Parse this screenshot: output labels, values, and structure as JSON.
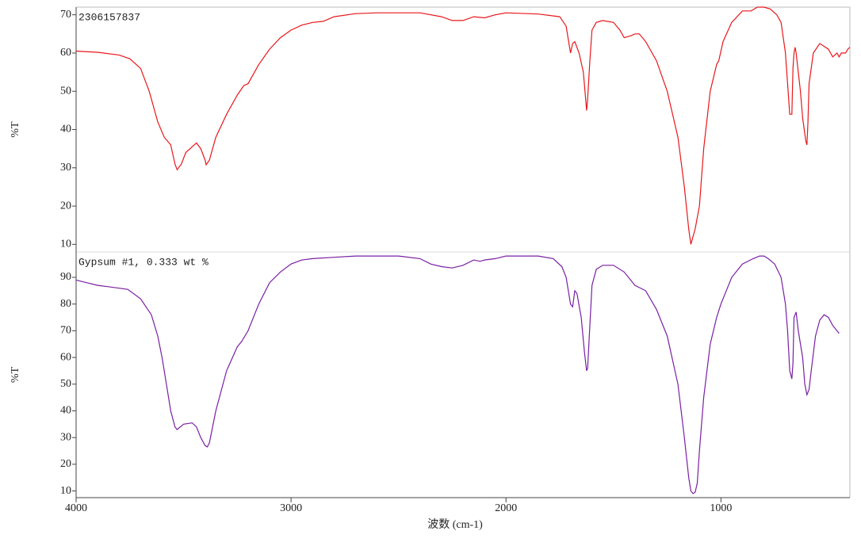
{
  "chart_data": [
    {
      "type": "line",
      "title": "2306157837",
      "ylabel": "%T",
      "color": "#e8171b",
      "xlim": [
        4000,
        400
      ],
      "ylim": [
        8,
        72
      ],
      "yticks": [
        10,
        20,
        30,
        40,
        50,
        60,
        70
      ],
      "x": [
        4000,
        3900,
        3800,
        3750,
        3700,
        3660,
        3620,
        3590,
        3560,
        3540,
        3530,
        3510,
        3490,
        3460,
        3440,
        3420,
        3400,
        3395,
        3380,
        3350,
        3300,
        3250,
        3220,
        3200,
        3150,
        3100,
        3050,
        3000,
        2950,
        2900,
        2850,
        2800,
        2700,
        2600,
        2400,
        2300,
        2250,
        2200,
        2150,
        2100,
        2050,
        2000,
        1850,
        1750,
        1720,
        1700,
        1690,
        1680,
        1660,
        1640,
        1625,
        1620,
        1610,
        1600,
        1580,
        1550,
        1500,
        1470,
        1450,
        1420,
        1400,
        1380,
        1350,
        1300,
        1250,
        1200,
        1170,
        1150,
        1140,
        1130,
        1120,
        1100,
        1080,
        1050,
        1020,
        1010,
        990,
        950,
        900,
        860,
        830,
        800,
        770,
        740,
        720,
        700,
        690,
        680,
        670,
        665,
        660,
        655,
        650,
        640,
        630,
        620,
        605,
        600,
        595,
        590,
        570,
        540,
        500,
        480,
        460,
        450,
        440,
        420,
        410,
        400
      ],
      "values": [
        60.5,
        60.2,
        59.5,
        58.5,
        56,
        50,
        42,
        38,
        36,
        31,
        29.5,
        31,
        34,
        35.5,
        36.5,
        35,
        32,
        30.8,
        32,
        38,
        44,
        49,
        51.5,
        52,
        57,
        61,
        64,
        66,
        67.3,
        68,
        68.3,
        69.5,
        70.3,
        70.5,
        70.5,
        69.5,
        68.5,
        68.5,
        69.5,
        69.2,
        70,
        70.5,
        70.2,
        69.5,
        67,
        60,
        62.5,
        63,
        60,
        55,
        45,
        48,
        58,
        66,
        68,
        68.5,
        68,
        66,
        64,
        64.5,
        65,
        65,
        63,
        58,
        50,
        38,
        25,
        14,
        10,
        12,
        14,
        20,
        35,
        50,
        57,
        58,
        63,
        68,
        71,
        71,
        72,
        72,
        71.5,
        70,
        68,
        60,
        52,
        44,
        44,
        56,
        60,
        61.5,
        60,
        55,
        50,
        43,
        37,
        36,
        42,
        52,
        60,
        62.5,
        61,
        59,
        60,
        59,
        60,
        60,
        61,
        61.5
      ]
    },
    {
      "type": "line",
      "title": "Gypsum #1, 0.333 wt %",
      "ylabel": "%T",
      "xlabel": "波数 (cm-1)",
      "color": "#7a1fa2",
      "xlim": [
        4000,
        400
      ],
      "ylim": [
        7.5,
        99.5
      ],
      "yticks": [
        10,
        20,
        30,
        40,
        50,
        60,
        70,
        80,
        90
      ],
      "xticks": [
        4000,
        3000,
        2000,
        1000
      ],
      "x": [
        4000,
        3950,
        3900,
        3850,
        3760,
        3700,
        3650,
        3620,
        3600,
        3580,
        3560,
        3540,
        3530,
        3500,
        3460,
        3440,
        3420,
        3400,
        3390,
        3380,
        3350,
        3300,
        3250,
        3230,
        3200,
        3150,
        3100,
        3050,
        3000,
        2950,
        2900,
        2800,
        2700,
        2500,
        2400,
        2350,
        2300,
        2250,
        2200,
        2150,
        2120,
        2100,
        2050,
        2000,
        1850,
        1780,
        1740,
        1720,
        1700,
        1690,
        1680,
        1670,
        1650,
        1635,
        1625,
        1620,
        1610,
        1600,
        1580,
        1550,
        1500,
        1450,
        1400,
        1350,
        1300,
        1250,
        1200,
        1170,
        1150,
        1140,
        1130,
        1120,
        1110,
        1100,
        1080,
        1050,
        1020,
        1000,
        980,
        950,
        900,
        850,
        820,
        800,
        780,
        750,
        720,
        700,
        690,
        680,
        670,
        665,
        660,
        650,
        640,
        620,
        610,
        600,
        590,
        580,
        560,
        540,
        520,
        500,
        480,
        460,
        450
      ],
      "values": [
        89,
        88,
        87,
        86.5,
        85.5,
        82,
        76,
        68,
        60,
        50,
        40,
        34,
        33,
        35,
        35.5,
        34,
        30,
        27,
        26.5,
        28,
        40,
        55,
        64,
        66,
        70,
        80,
        88,
        92,
        95,
        96.5,
        97,
        97.5,
        98,
        98,
        97,
        95,
        94,
        93.5,
        94.5,
        96.5,
        96,
        96.5,
        97,
        98,
        98,
        97,
        94,
        90,
        80,
        79,
        85,
        84,
        75,
        62,
        55,
        56,
        72,
        87,
        93,
        94.5,
        94.5,
        92,
        87,
        85,
        78,
        68,
        50,
        30,
        15,
        10,
        9,
        9.5,
        13,
        25,
        45,
        65,
        75,
        80,
        84,
        90,
        95,
        97,
        98,
        98,
        97,
        95,
        90,
        80,
        70,
        55,
        52,
        58,
        75,
        77,
        70,
        60,
        50,
        46,
        48,
        55,
        68,
        74,
        76,
        75,
        72,
        70,
        69
      ]
    }
  ]
}
